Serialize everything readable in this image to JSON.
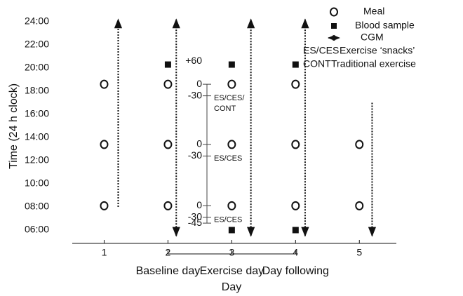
{
  "chart_data": {
    "type": "scatter",
    "x_label": "Day",
    "y_label": "Time (24 h clock)",
    "xlim": [
      0.5,
      5.58
    ],
    "xticks": [
      1,
      2,
      3,
      4,
      5
    ],
    "ylim": [
      4.85,
      24
    ],
    "yticks": [
      {
        "value": 6,
        "label": "06:00"
      },
      {
        "value": 8,
        "label": "08:00"
      },
      {
        "value": 10,
        "label": "10:00"
      },
      {
        "value": 12,
        "label": "12:00"
      },
      {
        "value": 14,
        "label": "14:00"
      },
      {
        "value": 16,
        "label": "16:00"
      },
      {
        "value": 18,
        "label": "18:00"
      },
      {
        "value": 20,
        "label": "20:00"
      },
      {
        "value": 22,
        "label": "22:00"
      },
      {
        "value": 24,
        "label": "24:00"
      }
    ],
    "series": [
      {
        "name": "Meal",
        "marker": "circle",
        "x": [
          1,
          1,
          1,
          2,
          2,
          2,
          3,
          3,
          3,
          4,
          4,
          4,
          5,
          5
        ],
        "values": [
          18.6,
          13.4,
          8.1,
          18.6,
          13.4,
          8.1,
          18.6,
          13.4,
          8.1,
          18.6,
          13.4,
          8.1,
          13.4,
          8.1
        ]
      },
      {
        "name": "Blood sample",
        "marker": "square",
        "x": [
          2,
          3,
          3,
          4,
          4
        ],
        "values": [
          20.3,
          20.3,
          6,
          20.3,
          6
        ]
      }
    ],
    "cgm": {
      "name": "CGM",
      "arrows": [
        {
          "x": 1.22,
          "start": 8,
          "end": 24.2,
          "heads": "end"
        },
        {
          "x": 2.13,
          "start": 5.5,
          "end": 24.2,
          "heads": "both"
        },
        {
          "x": 3.3,
          "start": 5.5,
          "end": 24.2,
          "heads": "both"
        },
        {
          "x": 4.15,
          "start": 5.5,
          "end": 24.2,
          "heads": "both"
        },
        {
          "x": 5.2,
          "start": 17,
          "end": 5.5,
          "heads": "end"
        }
      ]
    },
    "inset": {
      "day": 3,
      "groups": [
        {
          "ticks": [
            {
              "value": 60,
              "label": "+60"
            },
            0,
            {
              "value": -30,
              "label": "-30"
            }
          ],
          "note": [
            "ES/CES/",
            "CONT"
          ]
        },
        {
          "ticks": [
            0,
            {
              "value": -30,
              "label": "-30"
            }
          ],
          "note": [
            "ES/CES"
          ]
        },
        {
          "ticks": [
            0,
            {
              "value": -30,
              "label": "-30"
            },
            {
              "value": -45,
              "label": "-45"
            }
          ],
          "note": [
            "ES/CES"
          ]
        }
      ]
    },
    "phases": [
      {
        "label": "Baseline day",
        "x": 2
      },
      {
        "label": "Exercise day",
        "x": 3
      },
      {
        "label": "Day following",
        "x": 4
      }
    ],
    "key": [
      {
        "abbr": "ES/CES",
        "text": "Exercise ‘snacks’"
      },
      {
        "abbr": "CONT",
        "text": "Traditional exercise"
      }
    ]
  }
}
